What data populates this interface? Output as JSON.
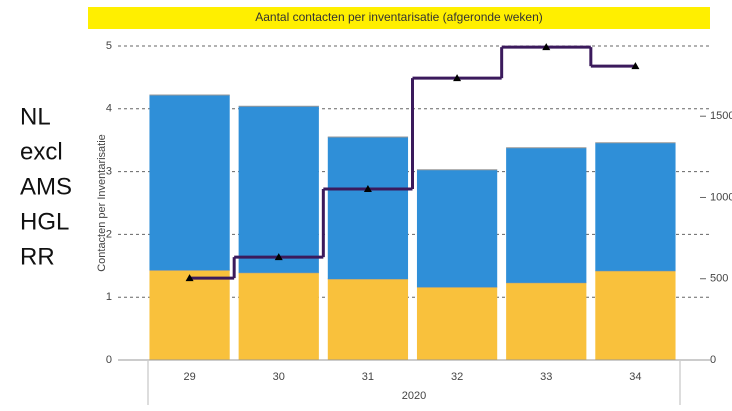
{
  "chart_data": {
    "type": "bar",
    "stacked": true,
    "title": "Aantal contacten per inventarisatie (afgeronde weken)",
    "ylabel": "Contacten per Inventarisatie",
    "xlabel": "2020",
    "annotation": [
      "NL",
      "excl",
      "AMS",
      "HGL",
      "RR"
    ],
    "categories": [
      "29",
      "30",
      "31",
      "32",
      "33",
      "34"
    ],
    "series": [
      {
        "color": "#f9c13c",
        "values": [
          1.43,
          1.39,
          1.29,
          1.16,
          1.23,
          1.42
        ]
      },
      {
        "color": "#2f8fd8",
        "values": [
          2.79,
          2.65,
          2.26,
          1.87,
          2.15,
          2.04
        ]
      },
      {
        "type": "line",
        "axis": "y2",
        "color": "#3b1a5c",
        "values": [
          504,
          633,
          1052,
          1734,
          1925,
          1808
        ]
      }
    ],
    "ylim": [
      0,
      5
    ],
    "yticks": [
      0,
      1,
      2,
      3,
      4,
      5
    ],
    "y2lim": [
      0,
      1932
    ],
    "y2ticks": [
      0,
      500,
      1000,
      1500
    ],
    "grid": true
  }
}
